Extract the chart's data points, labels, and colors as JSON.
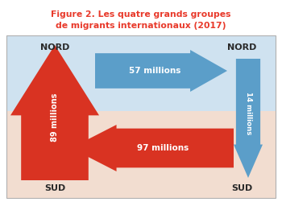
{
  "title_line1": "Figure 2. Les quatre grands groupes",
  "title_line2": "de migrants internationaux (2017)",
  "title_color": "#e8392a",
  "bg_color": "#ffffff",
  "north_bg": "#cfe2f0",
  "south_bg": "#f2ddd0",
  "nord_label": "NORD",
  "sud_label": "SUD",
  "arrow_57_text": "57 millions",
  "arrow_97_text": "97 millions",
  "arrow_89_text": "89 millions",
  "arrow_14_text": "14 millions",
  "arrow_blue_color": "#5b9ec9",
  "arrow_red_color": "#d93322",
  "text_white": "#ffffff",
  "text_dark": "#2a2a2a",
  "border_color": "#b0b0b0"
}
